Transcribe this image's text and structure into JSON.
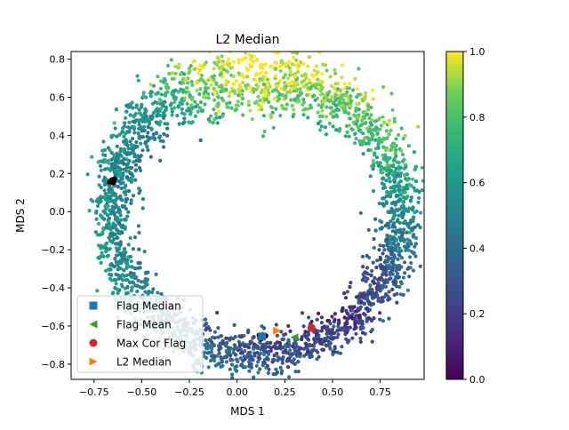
{
  "chart_data": {
    "type": "scatter",
    "title": "L2 Median",
    "xlabel": "MDS 1",
    "ylabel": "MDS 2",
    "xlim": [
      -0.87,
      0.98
    ],
    "ylim": [
      -0.88,
      0.84
    ],
    "xticks": [
      -0.75,
      -0.5,
      -0.25,
      0.0,
      0.25,
      0.5,
      0.75
    ],
    "xtick_labels": [
      "−0.75",
      "−0.50",
      "−0.25",
      "0.00",
      "0.25",
      "0.50",
      "0.75"
    ],
    "yticks": [
      -0.8,
      -0.6,
      -0.4,
      -0.2,
      0.0,
      0.2,
      0.4,
      0.6,
      0.8
    ],
    "ytick_labels": [
      "−0.8",
      "−0.6",
      "−0.4",
      "−0.2",
      "0.0",
      "0.2",
      "0.4",
      "0.6",
      "0.8"
    ],
    "colorbar": {
      "colormap": "viridis",
      "range": [
        0.0,
        1.0
      ],
      "ticks": [
        0.0,
        0.2,
        0.4,
        0.6,
        0.8,
        1.0
      ],
      "tick_labels": [
        "0.0",
        "0.2",
        "0.4",
        "0.6",
        "0.8",
        "1.0"
      ]
    },
    "point_cloud": {
      "shape": "ring",
      "approx_count": 3500,
      "center": [
        0.1,
        0.0
      ],
      "note": "colour values vary from ~0.1 (bottom-right) to ~1.0 (top-centre)"
    },
    "black_clusters": [
      {
        "x": -0.65,
        "y": 0.16
      },
      {
        "x": 0.13,
        "y": -0.655
      }
    ],
    "markers": [
      {
        "name": "Flag Median",
        "x": 0.13,
        "y": -0.655,
        "marker": "square",
        "color": "#1f77b4"
      },
      {
        "name": "Flag Mean",
        "x": 0.3,
        "y": -0.66,
        "marker": "triangle-left",
        "color": "#2ca02c"
      },
      {
        "name": "Max Cor Flag",
        "x": 0.39,
        "y": -0.61,
        "marker": "circle",
        "color": "#d62728"
      },
      {
        "name": "L2 Median",
        "x": 0.21,
        "y": -0.625,
        "marker": "triangle-right",
        "color": "#ff7f0e"
      }
    ],
    "legend": {
      "position": "lower-left",
      "entries": [
        "Flag Median",
        "Flag Mean",
        "Max Cor Flag",
        "L2 Median"
      ]
    }
  }
}
